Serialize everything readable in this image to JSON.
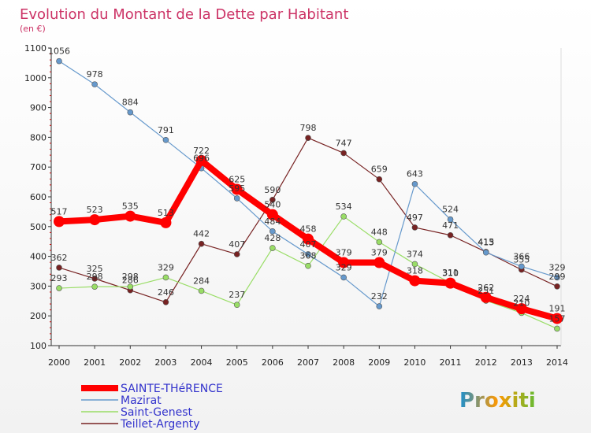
{
  "chart_data": {
    "type": "line",
    "title": "Evolution du Montant de la Dette par Habitant",
    "subtitle": "(en €)",
    "x": [
      "2000",
      "2001",
      "2002",
      "2003",
      "2004",
      "2005",
      "2006",
      "2007",
      "2008",
      "2009",
      "2010",
      "2011",
      "2012",
      "2013",
      "2014"
    ],
    "ylim": [
      100,
      1100
    ],
    "yticks": [
      100,
      200,
      300,
      400,
      500,
      600,
      700,
      800,
      900,
      1000,
      1100
    ],
    "grid": false,
    "legend_position": "bottom-left",
    "series": [
      {
        "name": "SAINTE-THéRENCE",
        "color": "#ff0000",
        "values": [
          517,
          523,
          535,
          513,
          722,
          625,
          540,
          458,
          379,
          379,
          318,
          310,
          262,
          224,
          191
        ]
      },
      {
        "name": "Mazirat",
        "color": "#6699cc",
        "values": [
          1056,
          978,
          884,
          791,
          696,
          595,
          484,
          407,
          329,
          232,
          643,
          524,
          413,
          366,
          329
        ]
      },
      {
        "name": "Saint-Genest",
        "color": "#99dd66",
        "values": [
          293,
          298,
          298,
          329,
          284,
          237,
          428,
          368,
          534,
          448,
          374,
          311,
          251,
          210,
          157
        ]
      },
      {
        "name": "Teillet-Argenty",
        "color": "#772222",
        "values": [
          362,
          325,
          286,
          246,
          442,
          407,
          590,
          798,
          747,
          659,
          497,
          471,
          415,
          355,
          299
        ]
      }
    ]
  },
  "colors": {
    "title": "#cc3366",
    "axis": "#333333",
    "tick_label": "#222222",
    "data_label": "#333333",
    "legend_text": "#3333cc"
  },
  "logo": {
    "text": "Proxiti",
    "name": "proxiti-logo"
  }
}
